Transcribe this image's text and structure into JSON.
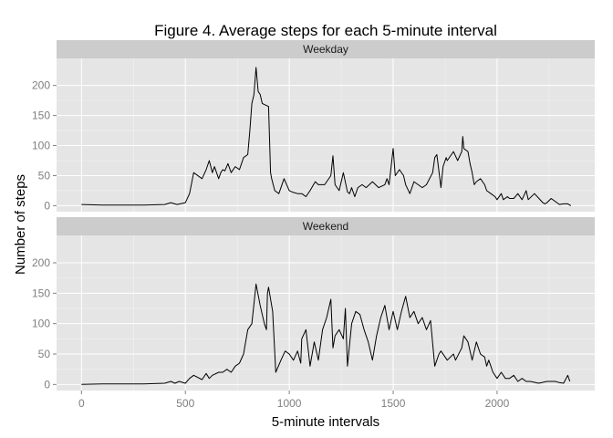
{
  "chart_data": {
    "type": "line",
    "title": "Figure 4. Average steps for each 5-minute interval",
    "xlabel": "5-minute intervals",
    "ylabel": "Number of steps",
    "xlim": [
      -120,
      2470
    ],
    "ylim": [
      -10,
      245
    ],
    "x_ticks": [
      0,
      500,
      1000,
      1500,
      2000
    ],
    "y_ticks": [
      0,
      50,
      100,
      150,
      200
    ],
    "grid": true,
    "line_color": "#000000",
    "panel_background": "#e5e5e5",
    "strip_background": "#cccccc",
    "grid_color": "#ffffff",
    "panels": [
      {
        "name": "Weekday",
        "x": [
          0,
          100,
          200,
          300,
          400,
          430,
          460,
          500,
          520,
          540,
          580,
          600,
          615,
          630,
          640,
          660,
          670,
          680,
          690,
          705,
          720,
          740,
          760,
          780,
          800,
          810,
          820,
          830,
          840,
          850,
          860,
          870,
          900,
          910,
          915,
          930,
          950,
          975,
          1000,
          1020,
          1040,
          1060,
          1080,
          1100,
          1125,
          1140,
          1170,
          1200,
          1210,
          1220,
          1240,
          1260,
          1280,
          1290,
          1300,
          1315,
          1330,
          1350,
          1370,
          1400,
          1430,
          1460,
          1470,
          1480,
          1500,
          1510,
          1530,
          1550,
          1560,
          1580,
          1600,
          1620,
          1640,
          1660,
          1690,
          1700,
          1710,
          1730,
          1740,
          1755,
          1760,
          1790,
          1810,
          1830,
          1835,
          1840,
          1860,
          1870,
          1880,
          1890,
          1900,
          1920,
          1940,
          1950,
          1970,
          1990,
          2000,
          2020,
          2030,
          2050,
          2060,
          2080,
          2100,
          2120,
          2140,
          2150,
          2180,
          2220,
          2230,
          2240,
          2260,
          2300,
          2320,
          2340,
          2355
        ],
        "y": [
          2,
          1,
          1,
          1,
          2,
          5,
          2,
          5,
          20,
          55,
          45,
          60,
          75,
          55,
          65,
          45,
          55,
          60,
          58,
          70,
          55,
          65,
          60,
          80,
          85,
          125,
          170,
          185,
          230,
          190,
          185,
          170,
          165,
          55,
          45,
          25,
          20,
          45,
          25,
          22,
          20,
          20,
          15,
          25,
          40,
          35,
          35,
          50,
          83,
          35,
          25,
          55,
          23,
          20,
          30,
          15,
          30,
          35,
          30,
          40,
          30,
          35,
          45,
          35,
          95,
          50,
          60,
          50,
          35,
          20,
          40,
          35,
          30,
          35,
          55,
          80,
          85,
          30,
          65,
          80,
          75,
          90,
          75,
          90,
          115,
          95,
          90,
          70,
          55,
          35,
          40,
          45,
          35,
          25,
          20,
          15,
          10,
          20,
          10,
          15,
          12,
          12,
          20,
          10,
          25,
          10,
          20,
          5,
          3,
          5,
          12,
          2,
          3,
          3,
          0
        ]
      },
      {
        "name": "Weekend",
        "x": [
          0,
          100,
          200,
          300,
          400,
          430,
          450,
          470,
          500,
          520,
          540,
          580,
          600,
          615,
          630,
          660,
          680,
          700,
          720,
          740,
          760,
          780,
          800,
          820,
          840,
          860,
          880,
          890,
          895,
          900,
          920,
          935,
          960,
          980,
          1000,
          1020,
          1040,
          1055,
          1060,
          1080,
          1100,
          1120,
          1140,
          1160,
          1180,
          1200,
          1210,
          1220,
          1240,
          1260,
          1270,
          1280,
          1300,
          1320,
          1340,
          1360,
          1380,
          1400,
          1420,
          1440,
          1460,
          1480,
          1500,
          1520,
          1540,
          1560,
          1580,
          1600,
          1620,
          1640,
          1660,
          1680,
          1700,
          1720,
          1730,
          1760,
          1790,
          1800,
          1830,
          1840,
          1860,
          1880,
          1900,
          1920,
          1940,
          1950,
          1960,
          1980,
          2000,
          2020,
          2040,
          2060,
          2080,
          2100,
          2120,
          2140,
          2160,
          2200,
          2240,
          2280,
          2300,
          2320,
          2340,
          2350
        ],
        "y": [
          0,
          1,
          1,
          1,
          2,
          5,
          2,
          5,
          2,
          10,
          15,
          8,
          18,
          10,
          15,
          20,
          20,
          25,
          20,
          30,
          35,
          50,
          90,
          100,
          165,
          130,
          100,
          90,
          150,
          160,
          120,
          20,
          40,
          55,
          50,
          40,
          55,
          35,
          75,
          90,
          30,
          70,
          40,
          90,
          110,
          140,
          60,
          80,
          90,
          75,
          125,
          30,
          100,
          120,
          115,
          90,
          70,
          40,
          80,
          110,
          130,
          90,
          120,
          90,
          120,
          145,
          110,
          120,
          100,
          110,
          90,
          105,
          30,
          50,
          55,
          40,
          50,
          40,
          60,
          80,
          70,
          40,
          70,
          50,
          45,
          30,
          40,
          20,
          10,
          20,
          10,
          10,
          15,
          5,
          10,
          5,
          5,
          2,
          5,
          5,
          3,
          2,
          15,
          5
        ]
      }
    ]
  }
}
